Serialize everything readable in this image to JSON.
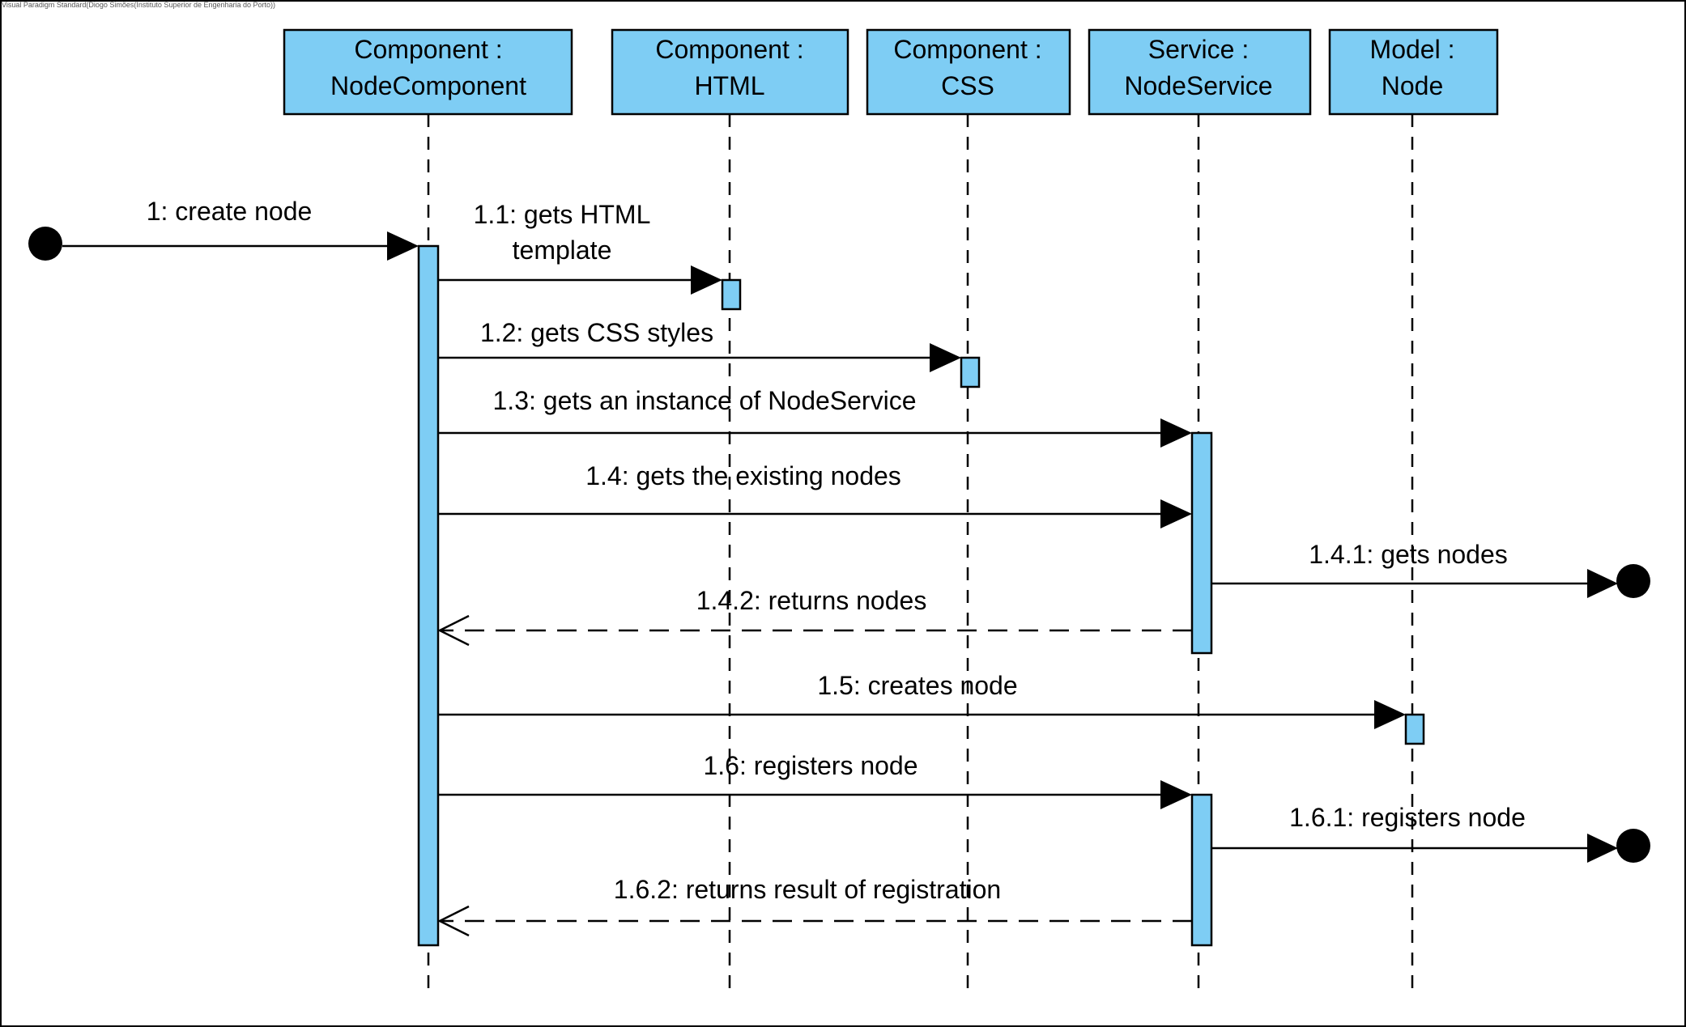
{
  "diagram": {
    "watermark": "Visual Paradigm Standard(Diogo Simões(Instituto Superior de Engenharia do Porto))",
    "colors": {
      "box_fill": "#7ecdf4",
      "line": "#000000",
      "background": "#ffffff"
    },
    "lifelines": [
      {
        "id": "nodecomponent",
        "line1": "Component :",
        "line2": "NodeComponent"
      },
      {
        "id": "html",
        "line1": "Component :",
        "line2": "HTML"
      },
      {
        "id": "css",
        "line1": "Component :",
        "line2": "CSS"
      },
      {
        "id": "nodeservice",
        "line1": "Service :",
        "line2": "NodeService"
      },
      {
        "id": "node",
        "line1": "Model :",
        "line2": "Node"
      }
    ],
    "messages": [
      {
        "id": "m1",
        "label": "1: create node",
        "from": "found",
        "to": "nodecomponent",
        "kind": "sync"
      },
      {
        "id": "m1_1",
        "label_line1": "1.1: gets HTML",
        "label_line2": "template",
        "from": "nodecomponent",
        "to": "html",
        "kind": "sync"
      },
      {
        "id": "m1_2",
        "label": "1.2: gets CSS styles",
        "from": "nodecomponent",
        "to": "css",
        "kind": "sync"
      },
      {
        "id": "m1_3",
        "label": "1.3: gets an instance of NodeService",
        "from": "nodecomponent",
        "to": "nodeservice",
        "kind": "sync"
      },
      {
        "id": "m1_4",
        "label": "1.4: gets the existing nodes",
        "from": "nodecomponent",
        "to": "nodeservice",
        "kind": "sync"
      },
      {
        "id": "m1_4_1",
        "label": "1.4.1: gets nodes",
        "from": "nodeservice",
        "to": "lost",
        "kind": "sync"
      },
      {
        "id": "m1_4_2",
        "label": "1.4.2: returns nodes",
        "from": "nodeservice",
        "to": "nodecomponent",
        "kind": "reply"
      },
      {
        "id": "m1_5",
        "label": "1.5: creates node",
        "from": "nodecomponent",
        "to": "node",
        "kind": "sync"
      },
      {
        "id": "m1_6",
        "label": "1.6: registers node",
        "from": "nodecomponent",
        "to": "nodeservice",
        "kind": "sync"
      },
      {
        "id": "m1_6_1",
        "label": "1.6.1: registers node",
        "from": "nodeservice",
        "to": "lost",
        "kind": "sync"
      },
      {
        "id": "m1_6_2",
        "label": "1.6.2: returns result of registration",
        "from": "nodeservice",
        "to": "nodecomponent",
        "kind": "reply"
      }
    ]
  }
}
